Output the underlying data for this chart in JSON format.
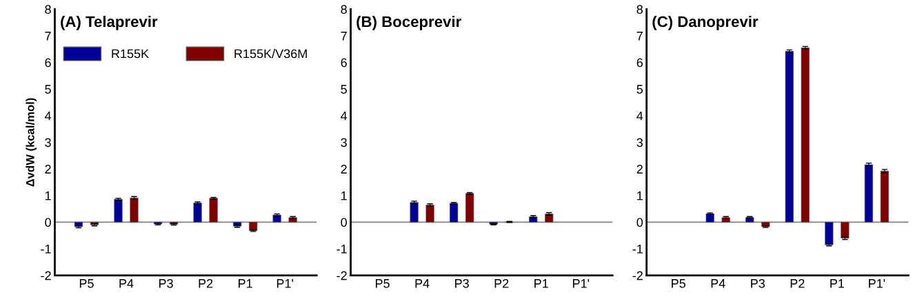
{
  "chart_data": [
    {
      "type": "bar",
      "title": "(A) Telaprevir",
      "ylabel": "ΔvdW (kcal/mol)",
      "categories": [
        "P5",
        "P4",
        "P3",
        "P2",
        "P1",
        "P1'"
      ],
      "ylim": [
        -2,
        8
      ],
      "yticks": [
        -2,
        -1,
        0,
        1,
        2,
        3,
        4,
        5,
        6,
        7,
        8
      ],
      "legend": "top",
      "grid": false,
      "ref_lines": [
        {
          "axis": "y",
          "value": 0,
          "color": "#808080"
        }
      ],
      "series": [
        {
          "name": "R155K",
          "color": "#000099",
          "values": [
            -0.17,
            0.86,
            -0.07,
            0.72,
            -0.15,
            0.27
          ],
          "errors": [
            0.04,
            0.04,
            0.03,
            0.04,
            0.04,
            0.04
          ]
        },
        {
          "name": "R155K/V36M",
          "color": "#800000",
          "values": [
            -0.1,
            0.91,
            -0.08,
            0.9,
            -0.32,
            0.17
          ],
          "errors": [
            0.04,
            0.05,
            0.03,
            0.03,
            0.03,
            0.04
          ]
        }
      ]
    },
    {
      "type": "bar",
      "title": "(B) Boceprevir",
      "categories": [
        "P5",
        "P4",
        "P3",
        "P2",
        "P1",
        "P1'"
      ],
      "ylim": [
        -2,
        8
      ],
      "yticks": [
        -2,
        -1,
        0,
        1,
        2,
        3,
        4,
        5,
        6,
        7,
        8
      ],
      "grid": false,
      "ref_lines": [
        {
          "axis": "y",
          "value": 0,
          "color": "#808080"
        }
      ],
      "series": [
        {
          "color": "#000099",
          "values": [
            null,
            0.74,
            0.71,
            -0.08,
            0.2,
            null
          ],
          "errors": [
            null,
            0.05,
            0.03,
            0.02,
            0.05,
            null
          ]
        },
        {
          "color": "#800000",
          "values": [
            null,
            0.64,
            1.08,
            0.01,
            0.31,
            null
          ],
          "errors": [
            null,
            0.05,
            0.03,
            0.02,
            0.05,
            null
          ]
        }
      ]
    },
    {
      "type": "bar",
      "title": "(C) Danoprevir",
      "categories": [
        "P5",
        "P4",
        "P3",
        "P2",
        "P1",
        "P1'"
      ],
      "ylim": [
        -2,
        8
      ],
      "yticks": [
        -2,
        -1,
        0,
        1,
        2,
        3,
        4,
        5,
        6,
        7,
        8
      ],
      "grid": false,
      "ref_lines": [
        {
          "axis": "y",
          "value": 0,
          "color": "#808080"
        }
      ],
      "series": [
        {
          "color": "#000099",
          "values": [
            null,
            0.32,
            0.18,
            6.42,
            -0.85,
            2.16
          ],
          "errors": [
            null,
            0.03,
            0.03,
            0.05,
            0.04,
            0.06
          ]
        },
        {
          "color": "#800000",
          "values": [
            null,
            0.17,
            -0.17,
            6.55,
            -0.6,
            1.92
          ],
          "errors": [
            null,
            0.04,
            0.03,
            0.05,
            0.05,
            0.06
          ]
        }
      ]
    }
  ]
}
